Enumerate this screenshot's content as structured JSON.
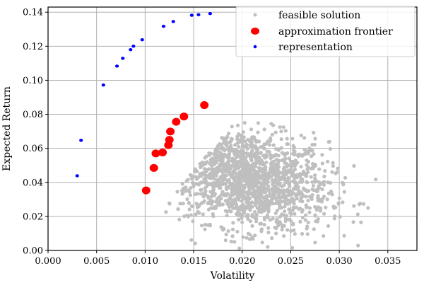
{
  "chart_data": {
    "type": "scatter",
    "title": "",
    "xlabel": "Volatility",
    "ylabel": "Expected Return",
    "xlim": [
      0,
      0.038
    ],
    "ylim": [
      0,
      0.143
    ],
    "xticks": [
      0.0,
      0.005,
      0.01,
      0.015,
      0.02,
      0.025,
      0.03,
      0.035
    ],
    "xtick_labels": [
      "0.000",
      "0.005",
      "0.010",
      "0.015",
      "0.020",
      "0.025",
      "0.030",
      "0.035"
    ],
    "yticks": [
      0.0,
      0.02,
      0.04,
      0.06,
      0.08,
      0.1,
      0.12,
      0.14
    ],
    "ytick_labels": [
      "0.00",
      "0.02",
      "0.04",
      "0.06",
      "0.08",
      "0.10",
      "0.12",
      "0.14"
    ],
    "grid": true,
    "legend_position": "top-right",
    "series": [
      {
        "name": "feasible solution",
        "color": "#bfbfbf",
        "marker": "small",
        "generated_cloud": {
          "count": 1500,
          "x_mean": 0.0205,
          "x_sd": 0.0042,
          "y_mean": 0.042,
          "y_sd": 0.015,
          "correlation": -0.25,
          "x_min": 0.011,
          "x_max": 0.037,
          "y_min": 0.0,
          "y_max": 0.082,
          "frontier_slope": 4.5
        }
      },
      {
        "name": "approximation frontier",
        "color": "#ff0000",
        "marker": "large",
        "points": [
          [
            0.0101,
            0.0353
          ],
          [
            0.0109,
            0.0485
          ],
          [
            0.0111,
            0.057
          ],
          [
            0.0118,
            0.0576
          ],
          [
            0.0124,
            0.0619
          ],
          [
            0.0125,
            0.065
          ],
          [
            0.0126,
            0.0699
          ],
          [
            0.0132,
            0.0756
          ],
          [
            0.014,
            0.0787
          ],
          [
            0.0161,
            0.0854
          ]
        ]
      },
      {
        "name": "representation",
        "color": "#0000ff",
        "marker": "medium",
        "points": [
          [
            0.003,
            0.0439
          ],
          [
            0.0034,
            0.0647
          ],
          [
            0.0057,
            0.0972
          ],
          [
            0.0071,
            0.1083
          ],
          [
            0.0077,
            0.1129
          ],
          [
            0.0085,
            0.118
          ],
          [
            0.0088,
            0.12
          ],
          [
            0.0097,
            0.1238
          ],
          [
            0.0119,
            0.1317
          ],
          [
            0.0129,
            0.1345
          ],
          [
            0.0148,
            0.1382
          ],
          [
            0.0155,
            0.1385
          ],
          [
            0.0167,
            0.1392
          ]
        ]
      }
    ]
  }
}
